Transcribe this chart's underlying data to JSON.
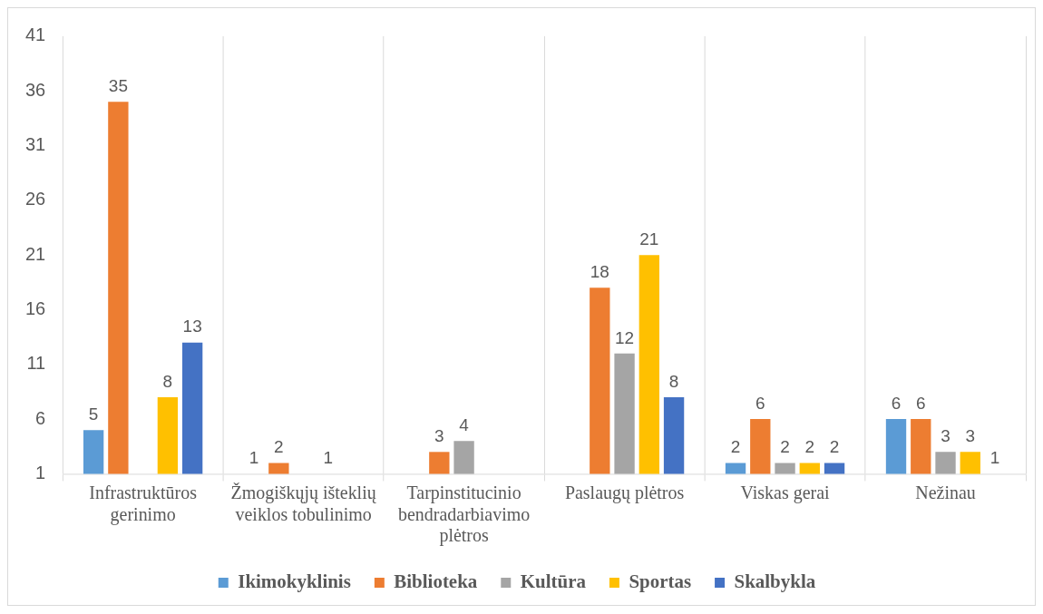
{
  "chart_data": {
    "type": "bar",
    "categories": [
      "Infrastruktūros gerinimo",
      "Žmogiškųjų išteklių veiklos tobulinimo",
      "Tarpinstitucinio bendradarbiavimo plėtros",
      "Paslaugų plėtros",
      "Viskas gerai",
      "Nežinau"
    ],
    "series": [
      {
        "name": "Ikimokyklinis",
        "color": "#5b9bd5",
        "values": [
          5,
          1,
          null,
          null,
          2,
          6
        ]
      },
      {
        "name": "Biblioteka",
        "color": "#ed7d31",
        "values": [
          35,
          2,
          3,
          18,
          6,
          6
        ]
      },
      {
        "name": "Kultūra",
        "color": "#a5a5a5",
        "values": [
          null,
          null,
          4,
          12,
          2,
          3
        ]
      },
      {
        "name": "Sportas",
        "color": "#ffc000",
        "values": [
          8,
          1,
          null,
          21,
          2,
          3
        ]
      },
      {
        "name": "Skalbykla",
        "color": "#4472c4",
        "values": [
          13,
          null,
          null,
          8,
          2,
          1
        ]
      }
    ],
    "ylim": [
      1,
      41
    ],
    "yticks": [
      1,
      6,
      11,
      16,
      21,
      26,
      31,
      36,
      41
    ],
    "grid": "x",
    "legend": "bottom",
    "data_labels": true
  }
}
